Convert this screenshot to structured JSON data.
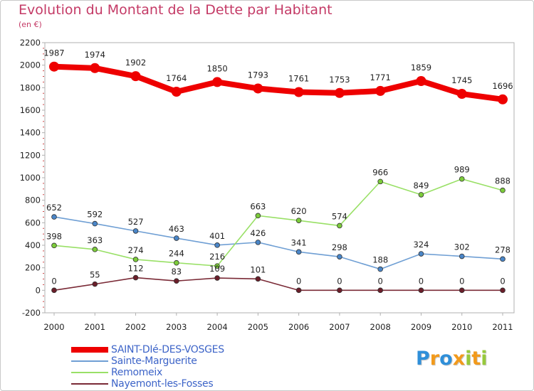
{
  "title": "Evolution du Montant de la Dette par Habitant",
  "subtitle": "(en €)",
  "brand": {
    "text": "Proxiti",
    "letter_colors": [
      "#2f8fd9",
      "#f29a1c",
      "#2f8fd9",
      "#f29a1c",
      "#97c93c",
      "#f29a1c",
      "#97c93c"
    ]
  },
  "chart_data": {
    "type": "line",
    "title": "Evolution du Montant de la Dette par Habitant",
    "subtitle": "(en €)",
    "x": [
      "2000",
      "2001",
      "2002",
      "2003",
      "2004",
      "2005",
      "2006",
      "2007",
      "2008",
      "2009",
      "2010",
      "2011"
    ],
    "ylim": [
      -200,
      2200
    ],
    "yticks": [
      "-200",
      "0",
      "200",
      "400",
      "600",
      "800",
      "1000",
      "1200",
      "1400",
      "1600",
      "1800",
      "2000",
      "2200"
    ],
    "grid": false,
    "legend_position": "bottom-left",
    "series": [
      {
        "name": "SAINT-DIé-DES-VOSGES",
        "color": "#ee0000",
        "marker_color": "#ee0000",
        "style": "thick",
        "values": [
          1987,
          1974,
          1902,
          1764,
          1850,
          1793,
          1761,
          1753,
          1771,
          1859,
          1745,
          1696
        ],
        "labels": [
          "1987",
          "1974",
          "1902",
          "1764",
          "1850",
          "1793",
          "1761",
          "1753",
          "1771",
          "1859",
          "1745",
          "1696"
        ]
      },
      {
        "name": "Sainte-Marguerite",
        "color": "#6f9fd4",
        "marker_color": "#4a86c8",
        "style": "thin",
        "values": [
          652,
          592,
          527,
          463,
          401,
          426,
          341,
          298,
          188,
          324,
          302,
          278
        ],
        "labels": [
          "652",
          "592",
          "527",
          "463",
          "401",
          "426",
          "341",
          "298",
          "188",
          "324",
          "302",
          "278"
        ]
      },
      {
        "name": "Remomeix",
        "color": "#99e066",
        "marker_color": "#7ccc3a",
        "style": "thin",
        "values": [
          398,
          363,
          274,
          244,
          216,
          663,
          620,
          574,
          966,
          849,
          989,
          888
        ],
        "labels": [
          "398",
          "363",
          "274",
          "244",
          "216",
          "663",
          "620",
          "574",
          "966",
          "849",
          "989",
          "888"
        ]
      },
      {
        "name": "Nayemont-les-Fosses",
        "color": "#7a2a36",
        "marker_color": "#6b1e2a",
        "style": "thin",
        "values": [
          0,
          55,
          112,
          83,
          109,
          101,
          0,
          0,
          0,
          0,
          0,
          0
        ],
        "labels": [
          "0",
          "55",
          "112",
          "83",
          "109",
          "101",
          "0",
          "0",
          "0",
          "0",
          "0",
          "0"
        ]
      }
    ]
  }
}
